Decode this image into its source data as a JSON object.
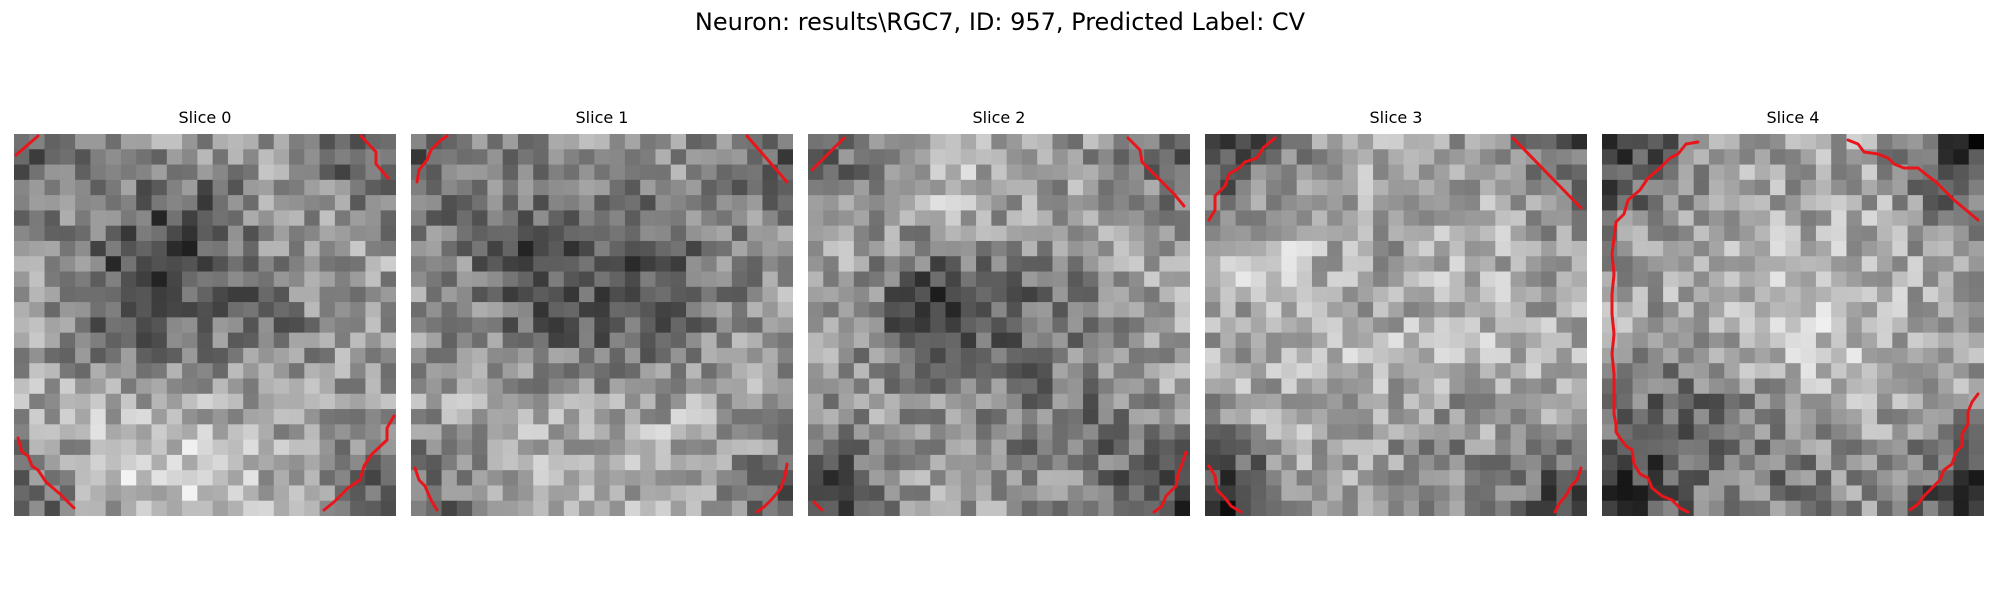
{
  "figure": {
    "title": "Neuron: results\\RGC7, ID: 957, Predicted Label: CV"
  },
  "colors": {
    "contour": "#e8161a",
    "background": "#ffffff",
    "colormap": "gray"
  },
  "slices": [
    {
      "title": "Slice 0",
      "dark_blobs": [
        [
          0.37,
          0.35,
          0.15,
          0.7
        ],
        [
          0.65,
          0.48,
          0.1,
          0.35
        ],
        [
          0.25,
          0.55,
          0.1,
          0.3
        ],
        [
          0.5,
          0.18,
          0.1,
          0.2
        ]
      ],
      "bright_blobs": [
        [
          0.2,
          0.9,
          0.2,
          0.35
        ],
        [
          0.48,
          0.88,
          0.15,
          0.3
        ]
      ],
      "corner_dark": [
        0.55,
        0.7,
        0.7,
        0.5
      ]
    },
    {
      "title": "Slice 1",
      "dark_blobs": [
        [
          0.42,
          0.4,
          0.22,
          0.45
        ],
        [
          0.65,
          0.42,
          0.15,
          0.35
        ],
        [
          0.3,
          0.28,
          0.1,
          0.25
        ]
      ],
      "bright_blobs": [
        [
          0.3,
          0.85,
          0.18,
          0.3
        ],
        [
          0.7,
          0.75,
          0.15,
          0.25
        ]
      ],
      "corner_dark": [
        0.5,
        0.55,
        0.55,
        0.45
      ]
    },
    {
      "title": "Slice 2",
      "dark_blobs": [
        [
          0.3,
          0.45,
          0.12,
          0.65
        ],
        [
          0.55,
          0.5,
          0.15,
          0.4
        ],
        [
          0.7,
          0.8,
          0.12,
          0.3
        ]
      ],
      "bright_blobs": [
        [
          0.35,
          0.15,
          0.15,
          0.3
        ],
        [
          0.15,
          0.4,
          0.08,
          0.2
        ]
      ],
      "corner_dark": [
        0.6,
        0.45,
        0.8,
        0.75
      ]
    },
    {
      "title": "Slice 3",
      "dark_blobs": [
        [
          0.6,
          0.8,
          0.12,
          0.3
        ],
        [
          0.45,
          0.35,
          0.15,
          0.15
        ]
      ],
      "bright_blobs": [
        [
          0.5,
          0.5,
          0.3,
          0.35
        ],
        [
          0.15,
          0.32,
          0.08,
          0.3
        ]
      ],
      "corner_dark": [
        0.85,
        0.55,
        0.95,
        0.8
      ]
    },
    {
      "title": "Slice 4",
      "dark_blobs": [
        [
          0.2,
          0.75,
          0.12,
          0.5
        ],
        [
          0.5,
          0.88,
          0.12,
          0.3
        ]
      ],
      "bright_blobs": [
        [
          0.5,
          0.45,
          0.25,
          0.2
        ],
        [
          0.6,
          0.5,
          0.12,
          0.3
        ]
      ],
      "corner_dark": [
        0.9,
        0.9,
        0.85,
        0.9
      ]
    }
  ]
}
